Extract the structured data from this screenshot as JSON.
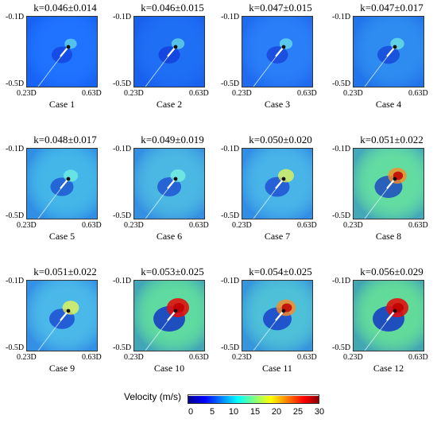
{
  "panels": [
    {
      "case": "Case 1",
      "k": "k=0.046±0.014",
      "bg": "#1f73ff",
      "strength": 0.3,
      "tip": 0
    },
    {
      "case": "Case 2",
      "k": "k=0.046±0.015",
      "bg": "#1f6ff5",
      "strength": 0.35,
      "tip": 0
    },
    {
      "case": "Case 3",
      "k": "k=0.047±0.015",
      "bg": "#2a7ef7",
      "strength": 0.35,
      "tip": 0
    },
    {
      "case": "Case 4",
      "k": "k=0.047±0.017",
      "bg": "#2e8cf0",
      "strength": 0.4,
      "tip": 0
    },
    {
      "case": "Case 5",
      "k": "k=0.048±0.017",
      "bg": "#44b6e8",
      "strength": 0.45,
      "tip": 0
    },
    {
      "case": "Case 6",
      "k": "k=0.049±0.019",
      "bg": "#4bb7e3",
      "strength": 0.5,
      "tip": 0
    },
    {
      "case": "Case 7",
      "k": "k=0.050±0.020",
      "bg": "#48b4e8",
      "strength": 0.55,
      "tip": 1
    },
    {
      "case": "Case 8",
      "k": "k=0.051±0.022",
      "bg": "#63dca2",
      "strength": 0.75,
      "tip": 2
    },
    {
      "case": "Case 9",
      "k": "k=0.051±0.022",
      "bg": "#4ab8e8",
      "strength": 0.6,
      "tip": 1
    },
    {
      "case": "Case 10",
      "k": "k=0.053±0.025",
      "bg": "#5fdaa0",
      "strength": 1.0,
      "tip": 3
    },
    {
      "case": "Case 11",
      "k": "k=0.054±0.025",
      "bg": "#4ec0d8",
      "strength": 0.8,
      "tip": 2
    },
    {
      "case": "Case 12",
      "k": "k=0.056±0.029",
      "bg": "#62db9a",
      "strength": 1.0,
      "tip": 3
    }
  ],
  "axes": {
    "y_top": "-0.1D",
    "y_bottom": "-0.5D",
    "x_left": "0.23D",
    "x_right": "0.63D"
  },
  "chart_data": {
    "type": "heatmap",
    "panel_count": 12,
    "colorbar": {
      "label": "Velocity (m/s)",
      "ticks": [
        "0",
        "5",
        "10",
        "15",
        "20",
        "25",
        "30"
      ],
      "range": [
        0,
        30
      ],
      "colors": [
        "#00008f",
        "#0000ff",
        "#0080ff",
        "#00ffff",
        "#80ff80",
        "#ffff00",
        "#ff8000",
        "#ff0000",
        "#800000"
      ]
    }
  }
}
